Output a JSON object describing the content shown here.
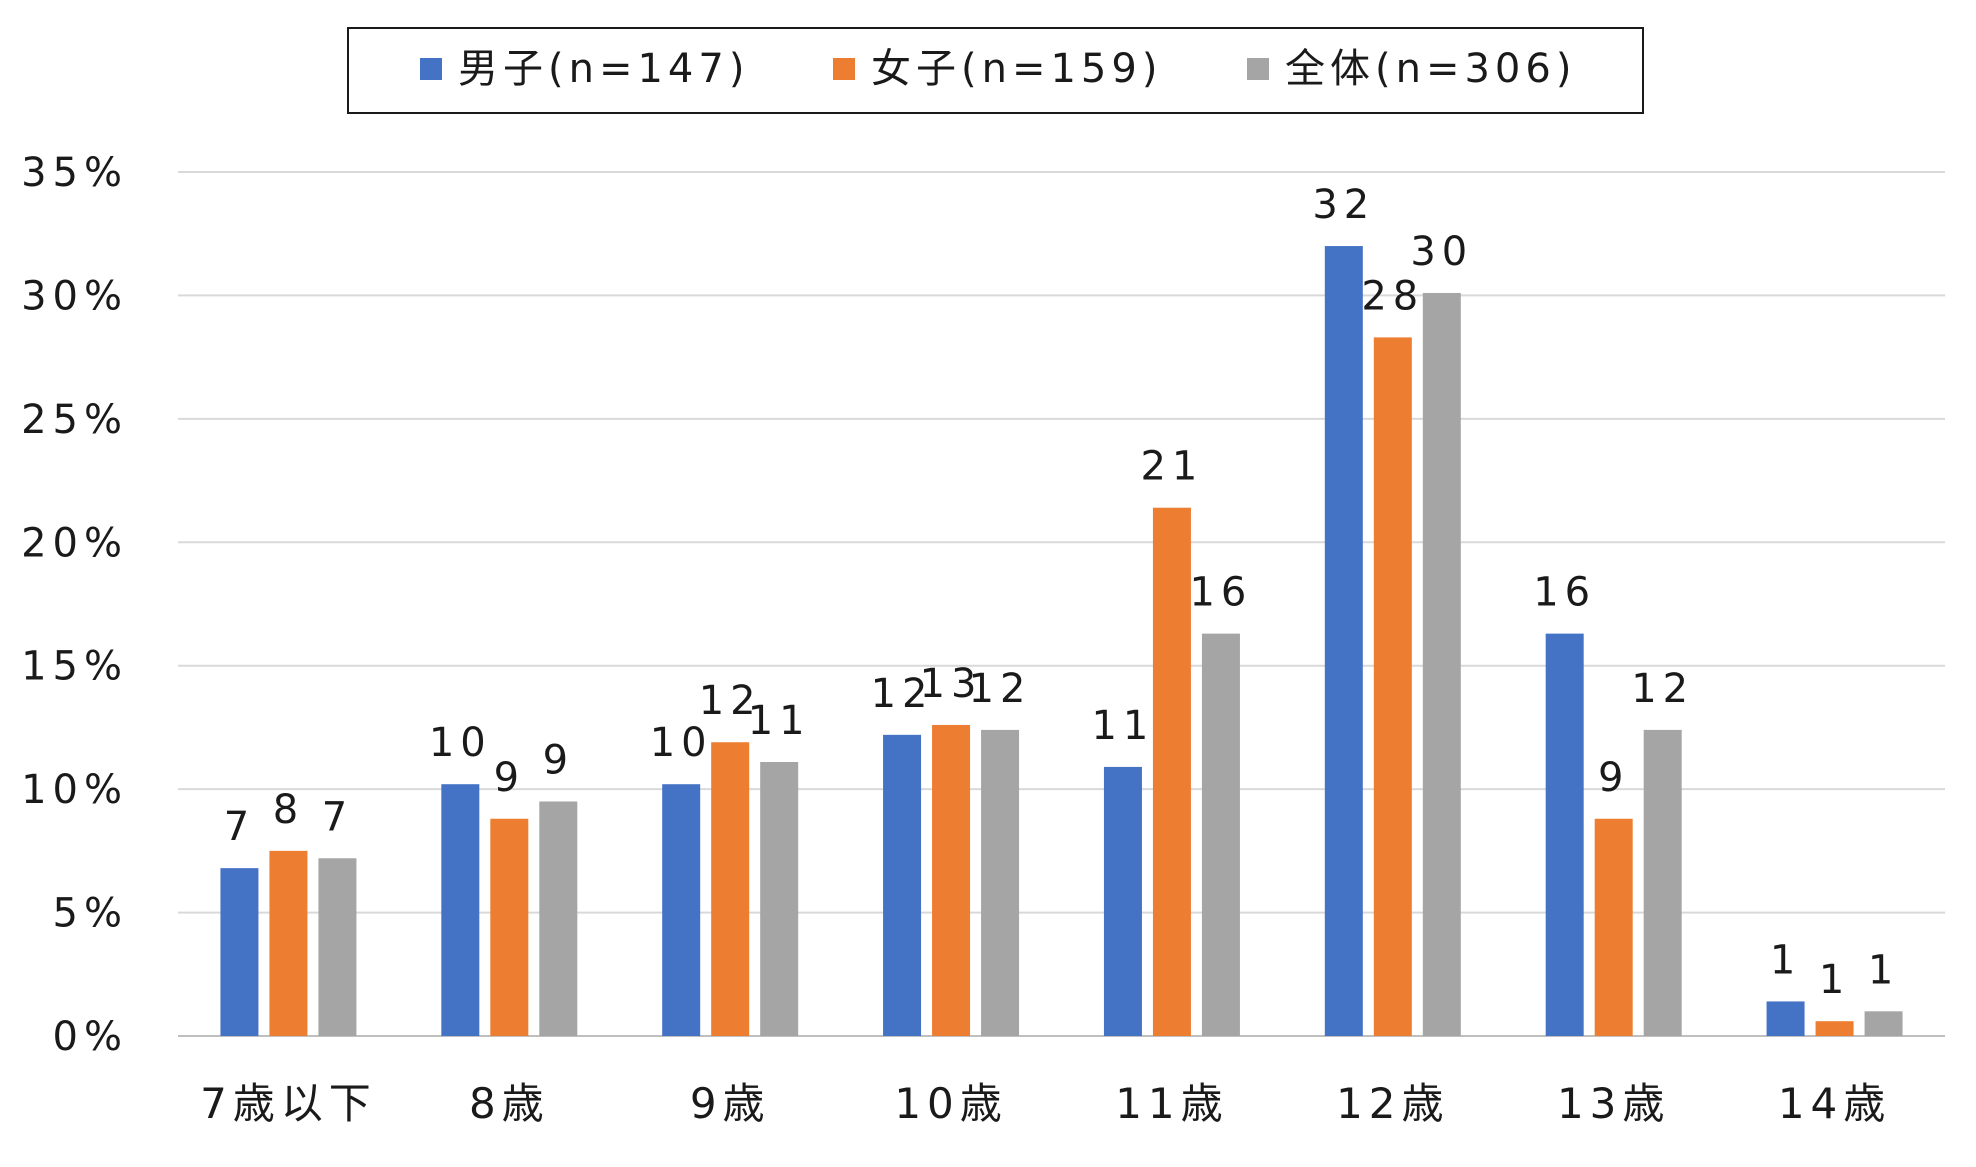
{
  "chart_data": {
    "type": "bar",
    "categories": [
      "7歳以下",
      "8歳",
      "9歳",
      "10歳",
      "11歳",
      "12歳",
      "13歳",
      "14歳"
    ],
    "series": [
      {
        "name": "男子(n=147)",
        "color": "#4472C4",
        "values": [
          6.8,
          10.2,
          10.2,
          12.2,
          10.9,
          32.0,
          16.3,
          1.4
        ],
        "labels": [
          "7",
          "10",
          "10",
          "12",
          "11",
          "32",
          "16",
          "1"
        ]
      },
      {
        "name": "女子(n=159)",
        "color": "#ED7D31",
        "values": [
          7.5,
          8.8,
          11.9,
          12.6,
          21.4,
          28.3,
          8.8,
          0.6
        ],
        "labels": [
          "8",
          "9",
          "12",
          "13",
          "21",
          "28",
          "9",
          "1"
        ]
      },
      {
        "name": "全体(n=306)",
        "color": "#A5A5A5",
        "values": [
          7.2,
          9.5,
          11.1,
          12.4,
          16.3,
          30.1,
          12.4,
          1.0
        ],
        "labels": [
          "7",
          "9",
          "11",
          "12",
          "16",
          "30",
          "12",
          "1"
        ]
      }
    ],
    "ylim": [
      0,
      35
    ],
    "yticks": [
      "0%",
      "5%",
      "10%",
      "15%",
      "20%",
      "25%",
      "30%",
      "35%"
    ],
    "grid": true,
    "legend_position": "top"
  }
}
